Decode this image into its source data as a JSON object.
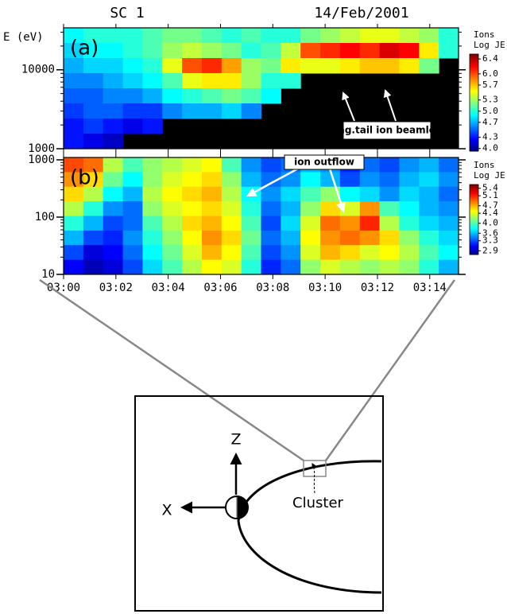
{
  "header": {
    "left": "SC 1",
    "right": "14/Feb/2001"
  },
  "chart_data": [
    {
      "type": "heatmap",
      "panel_label": "(a)",
      "y_label": "E (eV)",
      "log_y": true,
      "xlim": [
        0,
        15.1
      ],
      "ylim": [
        1000,
        34000
      ],
      "yticks": [
        1000,
        10000
      ],
      "colorbar_title": "Ions",
      "colorbar_label": "Log JE",
      "clim": [
        3.93,
        6.53
      ],
      "cticks": [
        6.4,
        {
          "value": 6,
          "label": "6.0"
        },
        5.7,
        5.3,
        {
          "value": 5,
          "label": "5.0"
        },
        4.7,
        4.3,
        {
          "value": 4,
          "label": "4.0"
        }
      ],
      "background": "#000000",
      "z": [
        [
          4.9,
          5.0,
          5.0,
          5.0,
          5.1,
          5.2,
          5.2,
          5.1,
          5.0,
          5.1,
          5.0,
          5.0,
          5.2,
          5.3,
          5.4,
          5.5,
          5.5,
          5.4,
          5.3,
          5.0
        ],
        [
          4.8,
          4.9,
          4.9,
          5.0,
          5.1,
          5.3,
          5.4,
          5.3,
          5.2,
          5.0,
          5.1,
          5.4,
          6.0,
          6.1,
          6.2,
          6.1,
          6.3,
          6.2,
          5.6,
          5.0
        ],
        [
          4.7,
          4.8,
          4.8,
          4.9,
          5.0,
          5.5,
          6.0,
          6.1,
          5.8,
          5.3,
          5.2,
          5.6,
          5.5,
          5.5,
          5.6,
          5.7,
          5.7,
          5.6,
          5.2,
          null
        ],
        [
          4.6,
          4.6,
          4.7,
          4.8,
          4.9,
          5.1,
          5.5,
          5.6,
          5.6,
          5.3,
          5.0,
          5.0,
          null,
          null,
          null,
          null,
          null,
          null,
          null,
          null
        ],
        [
          4.5,
          4.5,
          4.6,
          4.6,
          4.7,
          4.9,
          5.0,
          5.1,
          5.2,
          5.1,
          4.9,
          null,
          null,
          null,
          null,
          null,
          null,
          null,
          null,
          null
        ],
        [
          4.4,
          4.5,
          4.5,
          4.4,
          4.4,
          4.6,
          4.7,
          4.7,
          4.8,
          4.6,
          null,
          null,
          null,
          null,
          null,
          null,
          null,
          null,
          null,
          null
        ],
        [
          4.3,
          4.4,
          4.3,
          4.2,
          4.3,
          null,
          null,
          null,
          null,
          null,
          null,
          null,
          null,
          null,
          null,
          null,
          null,
          null,
          null,
          null
        ],
        [
          4.3,
          4.2,
          4.1,
          null,
          null,
          null,
          null,
          null,
          null,
          null,
          null,
          null,
          null,
          null,
          null,
          null,
          null,
          null,
          null,
          null
        ]
      ],
      "annotation": "mag.tail ion beamlets"
    },
    {
      "type": "heatmap",
      "panel_label": "(b)",
      "log_y": true,
      "xlim": [
        0,
        15.1
      ],
      "ylim": [
        10,
        1100
      ],
      "xticks": [
        {
          "value": 0,
          "label": "03:00"
        },
        {
          "value": 2,
          "label": "03:02"
        },
        {
          "value": 4,
          "label": "03:04"
        },
        {
          "value": 6,
          "label": "03:06"
        },
        {
          "value": 8,
          "label": "03:08"
        },
        {
          "value": 10,
          "label": "03:10"
        },
        {
          "value": 12,
          "label": "03:12"
        },
        {
          "value": 14,
          "label": "03:14"
        }
      ],
      "yticks": [
        10,
        100,
        1000
      ],
      "colorbar_title": "Ions",
      "colorbar_label": "Log JE",
      "clim": [
        2.75,
        5.55
      ],
      "cticks": [
        5.4,
        5.1,
        4.7,
        4.4,
        {
          "value": 4,
          "label": "4.0"
        },
        3.6,
        3.3,
        2.9
      ],
      "background": "#000000",
      "z": [
        [
          5.0,
          4.9,
          4.3,
          4.0,
          4.2,
          4.3,
          4.4,
          4.5,
          4.0,
          3.5,
          3.3,
          3.4,
          3.6,
          3.5,
          3.2,
          3.4,
          3.3,
          3.5,
          3.6,
          3.4
        ],
        [
          4.8,
          4.6,
          4.1,
          3.8,
          4.2,
          4.4,
          4.5,
          4.6,
          4.2,
          3.6,
          3.4,
          3.5,
          3.8,
          3.6,
          3.3,
          3.5,
          3.4,
          3.6,
          3.7,
          3.5
        ],
        [
          4.6,
          4.3,
          3.8,
          3.6,
          4.3,
          4.5,
          4.6,
          4.7,
          4.3,
          3.8,
          3.5,
          3.7,
          4.0,
          4.2,
          3.8,
          3.7,
          3.5,
          3.7,
          3.6,
          3.4
        ],
        [
          4.3,
          3.9,
          3.5,
          3.4,
          4.2,
          4.4,
          4.5,
          4.6,
          4.4,
          3.9,
          3.4,
          3.6,
          4.2,
          4.6,
          4.4,
          4.8,
          4.0,
          3.8,
          3.6,
          3.5
        ],
        [
          3.9,
          3.6,
          3.3,
          3.4,
          4.0,
          4.3,
          4.6,
          4.7,
          4.5,
          4.0,
          3.3,
          3.7,
          4.4,
          4.9,
          4.8,
          5.1,
          4.3,
          3.9,
          3.7,
          3.6
        ],
        [
          3.6,
          3.3,
          3.2,
          3.5,
          3.9,
          4.2,
          4.5,
          4.8,
          4.6,
          4.1,
          3.4,
          3.6,
          4.5,
          4.8,
          4.9,
          4.8,
          4.6,
          4.2,
          3.9,
          3.7
        ],
        [
          3.3,
          3.0,
          3.1,
          3.4,
          3.8,
          4.1,
          4.4,
          4.7,
          4.5,
          4.0,
          3.3,
          3.5,
          4.4,
          4.7,
          4.6,
          4.4,
          4.5,
          4.3,
          4.0,
          3.8
        ],
        [
          3.1,
          2.9,
          3.0,
          3.3,
          3.7,
          4.0,
          4.3,
          4.5,
          4.4,
          3.9,
          3.2,
          3.4,
          4.2,
          4.4,
          4.3,
          4.2,
          4.3,
          4.2,
          3.9,
          3.6
        ]
      ],
      "annotation": "ion outflow"
    }
  ],
  "diagram": {
    "z_axis": "Z",
    "x_axis": "X",
    "spacecraft": "Cluster"
  }
}
